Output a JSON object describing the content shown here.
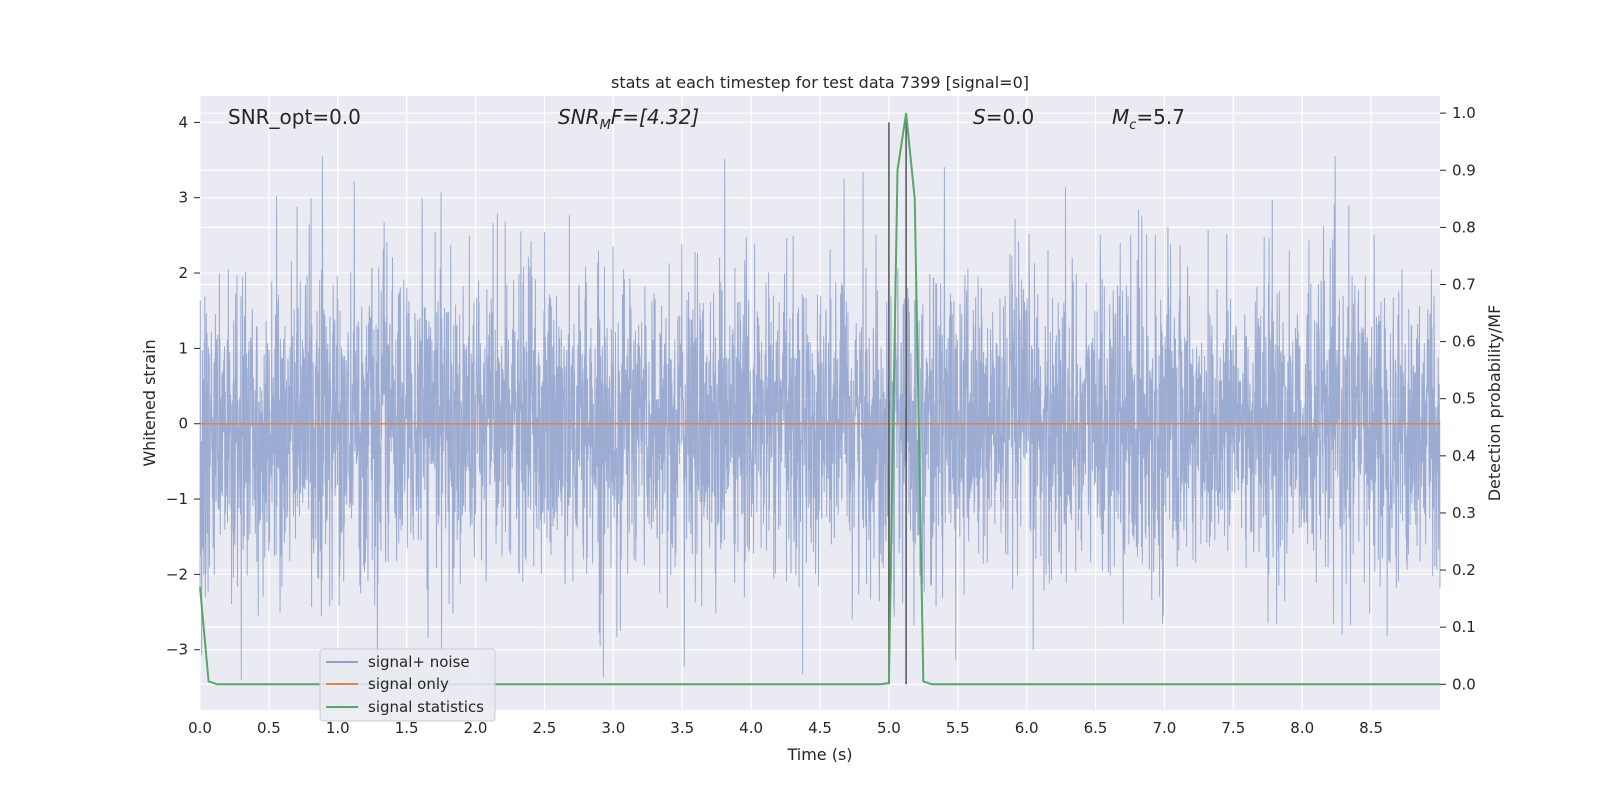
{
  "chart_data": {
    "type": "line",
    "title": "stats at each timestep for test data 7399 [signal=0]",
    "xlabel": "Time (s)",
    "ylabel_left": "Whitened strain",
    "ylabel_right": "Detection probability/MF",
    "xlim": [
      0.0,
      9.0
    ],
    "ylim_left": [
      -3.8,
      4.35
    ],
    "ylim_right": [
      -0.045,
      1.03
    ],
    "grid": true,
    "x_ticks": [
      "0.0",
      "0.5",
      "1.0",
      "1.5",
      "2.0",
      "2.5",
      "3.0",
      "3.5",
      "4.0",
      "4.5",
      "5.0",
      "5.5",
      "6.0",
      "6.5",
      "7.0",
      "7.5",
      "8.0",
      "8.5"
    ],
    "y_ticks_left": [
      "4",
      "3",
      "2",
      "1",
      "0",
      "−1",
      "−2",
      "−3"
    ],
    "y_ticks_right": [
      "1.0",
      "0.9",
      "0.8",
      "0.7",
      "0.6",
      "0.5",
      "0.4",
      "0.3",
      "0.2",
      "0.1",
      "0.0"
    ],
    "annotations": {
      "snr_opt": "SNR_opt=0.0",
      "snr_mf_main": "SNR",
      "snr_mf_sub": "M",
      "snr_mf_rest": "F=[4.32]",
      "s_main": "S",
      "s_rest": "=0.0",
      "mc_main": "M",
      "mc_sub": "c",
      "mc_rest": "=5.7"
    },
    "vertical_lines": [
      5.0,
      5.125
    ],
    "legend_position": "lower-left",
    "series": [
      {
        "name": "signal+ noise",
        "color": "#8da0cb",
        "axis": "left",
        "description_values": {
          "amplitude_typical": 1.0,
          "max_peak": 3.55
        }
      },
      {
        "name": "signal only",
        "color": "#dd8452",
        "axis": "left",
        "x": [
          0.0,
          9.0
        ],
        "y": [
          0.0,
          0.0
        ]
      },
      {
        "name": "signal statistics",
        "color": "#55a868",
        "axis": "right",
        "x": [
          0.0,
          0.0625,
          0.125,
          4.9375,
          5.0,
          5.0625,
          5.125,
          5.1875,
          5.25,
          5.3125,
          9.0
        ],
        "y": [
          0.17,
          0.005,
          0.0,
          0.0,
          0.002,
          0.9,
          1.0,
          0.85,
          0.005,
          0.0,
          0.0
        ]
      }
    ]
  }
}
